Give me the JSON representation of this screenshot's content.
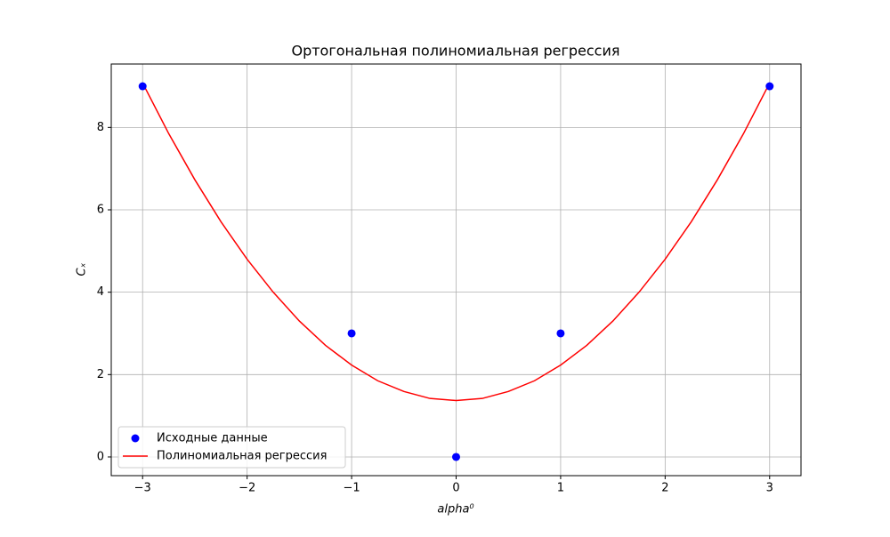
{
  "chart_data": {
    "type": "scatter",
    "title": "Ортогональная полиномиальная регрессия",
    "x_label": "alpha⁰",
    "y_label": "Cₓ",
    "xlim": [
      -3.3,
      3.3
    ],
    "ylim": [
      -0.454,
      9.54
    ],
    "xticks": [
      {
        "value": -3,
        "label": "−3"
      },
      {
        "value": -2,
        "label": "−2"
      },
      {
        "value": -1,
        "label": "−1"
      },
      0,
      1,
      2,
      3
    ],
    "yticks": [
      0,
      2,
      4,
      6,
      8
    ],
    "grid": true,
    "legend": "lower left",
    "series": [
      {
        "name": "Исходные данные",
        "type": "scatter",
        "color": "#0000ff",
        "x": [
          -3,
          -1,
          0,
          1,
          3
        ],
        "values": [
          9,
          3,
          0,
          3,
          9
        ]
      },
      {
        "name": "Полиномиальная регрессия",
        "type": "line",
        "color": "#ff0000",
        "x": [
          -3,
          -2.75,
          -2.5,
          -2.25,
          -2,
          -1.75,
          -1.5,
          -1.25,
          -1,
          -0.75,
          -0.5,
          -0.25,
          0,
          0.25,
          0.5,
          0.75,
          1,
          1.25,
          1.5,
          1.75,
          2,
          2.25,
          2.5,
          2.75,
          3
        ],
        "values": [
          9.08,
          7.85,
          6.73,
          5.71,
          4.8,
          4.0,
          3.3,
          2.71,
          2.23,
          1.85,
          1.59,
          1.42,
          1.37,
          1.42,
          1.59,
          1.85,
          2.23,
          2.71,
          3.3,
          4.0,
          4.8,
          5.71,
          6.73,
          7.85,
          9.08
        ]
      }
    ]
  }
}
